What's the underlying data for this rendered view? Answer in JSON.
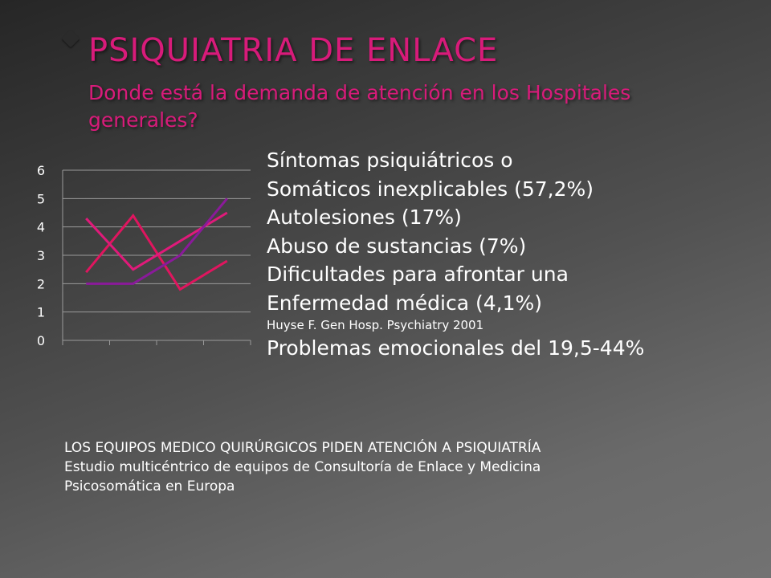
{
  "slide": {
    "title": "PSIQUIATRIA DE ENLACE",
    "subtitle": "Donde está la demanda de atención en los Hospitales generales?",
    "text_lines": [
      "Síntomas psiquiátricos o",
      "Somáticos inexplicables (57,2%)",
      "Autolesiones (17%)",
      "Abuso de sustancias (7%)",
      "Dificultades para afrontar una",
      "Enfermedad médica (4,1%)"
    ],
    "citation": "Huyse F. Gen Hosp. Psychiatry 2001",
    "emotional_problems": "Problemas emocionales  del 19,5-44%",
    "bottom_lines": [
      "LOS EQUIPOS MEDICO QUIRÚRGICOS PIDEN ATENCIÓN A PSIQUIATRÍA",
      "Estudio multicéntrico de equipos de Consultoría de Enlace  y Medicina",
      "Psicosomática en Europa"
    ],
    "colors": {
      "title": "#d81b7a",
      "text": "#ffffff",
      "series1": "#e0155f",
      "series2": "#e01a7a",
      "series3": "#8a1a9a"
    }
  },
  "chart_data": {
    "type": "line",
    "x": [
      1,
      2,
      3,
      4
    ],
    "series": [
      {
        "values": [
          2.4,
          4.4,
          1.8,
          2.8
        ],
        "color": "#e0155f"
      },
      {
        "values": [
          4.3,
          2.5,
          3.5,
          4.5
        ],
        "color": "#e01a7a"
      },
      {
        "values": [
          2.0,
          2.0,
          3.0,
          5.0
        ],
        "color": "#8a1a9a"
      }
    ],
    "ylim": [
      0,
      6
    ],
    "yticks": [
      0,
      1,
      2,
      3,
      4,
      5,
      6
    ],
    "grid": true,
    "legend": "none"
  }
}
